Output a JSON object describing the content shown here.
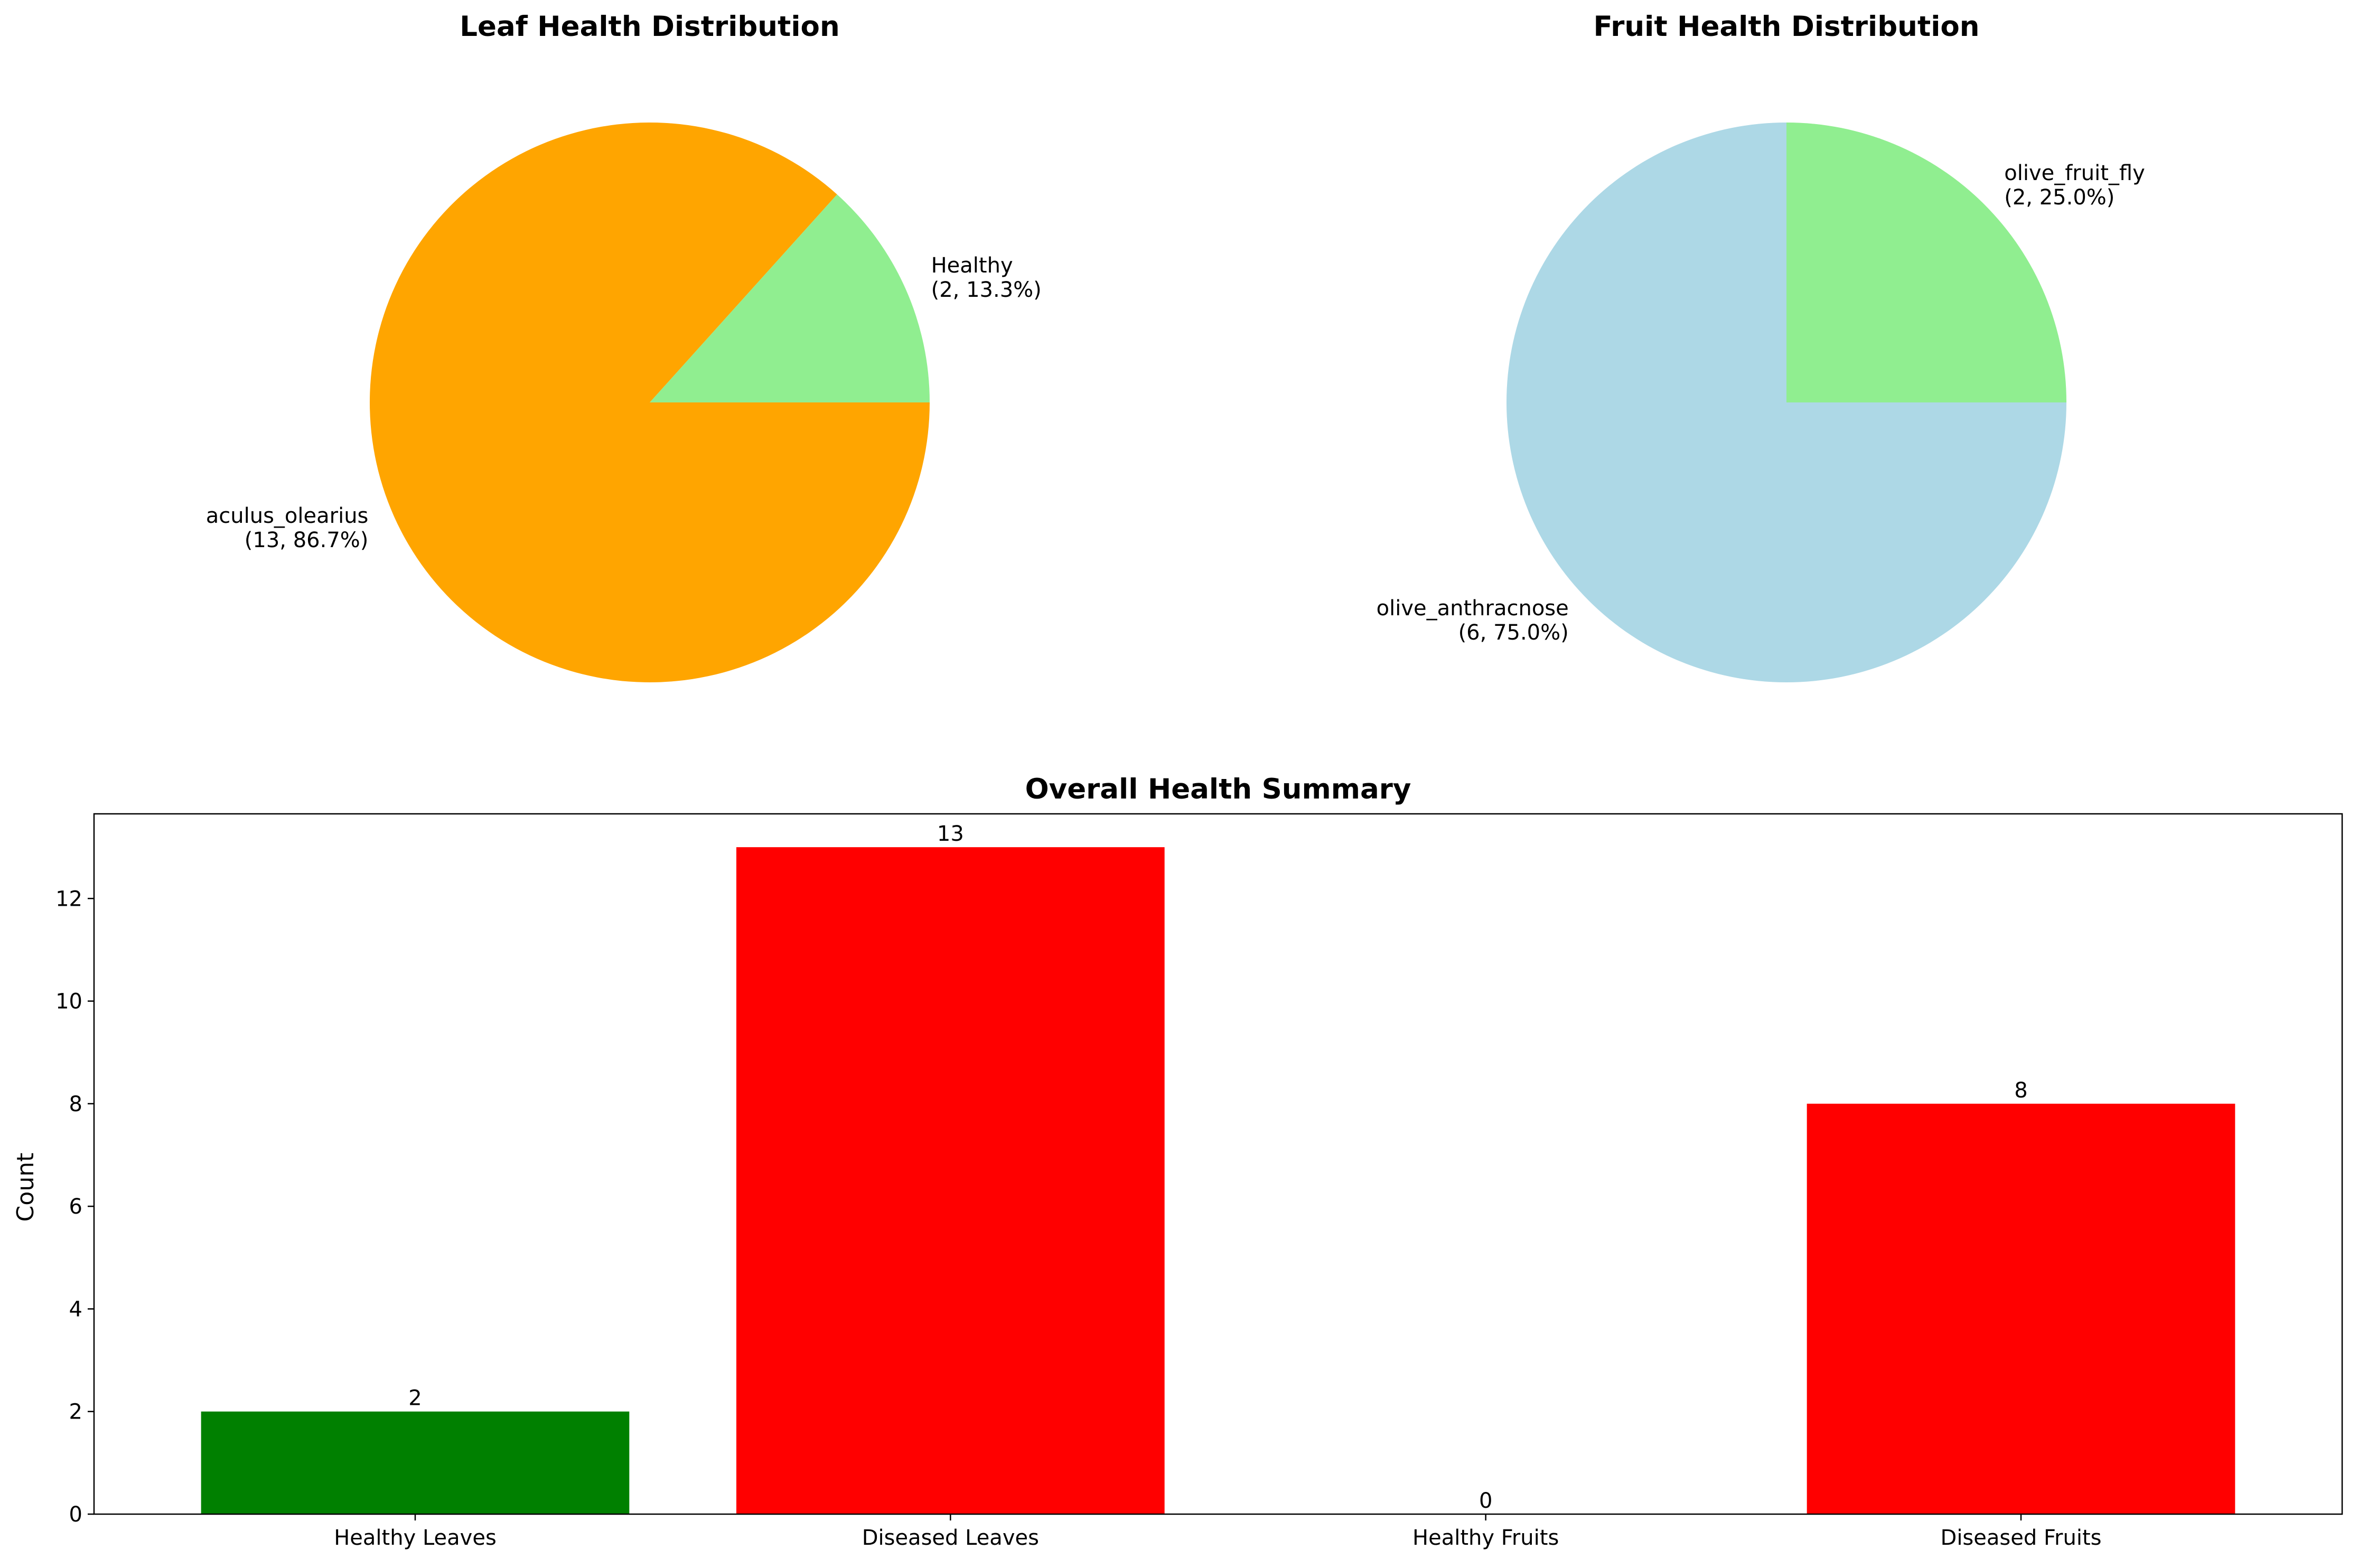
{
  "chart_data": [
    {
      "type": "pie",
      "title": "Leaf Health Distribution",
      "slices": [
        {
          "label": "Healthy",
          "value": 2,
          "percent": 13.3,
          "color": "#90ee90",
          "text": "Healthy\n(2, 13.3%)"
        },
        {
          "label": "aculus_olearius",
          "value": 13,
          "percent": 86.7,
          "color": "#ffa500",
          "text": "aculus_olearius\n(13, 86.7%)"
        }
      ],
      "start_angle": 0
    },
    {
      "type": "pie",
      "title": "Fruit Health Distribution",
      "slices": [
        {
          "label": "olive_fruit_fly",
          "value": 2,
          "percent": 25.0,
          "color": "#90ee90",
          "text": "olive_fruit_fly\n(2, 25.0%)"
        },
        {
          "label": "olive_anthracnose",
          "value": 6,
          "percent": 75.0,
          "color": "#add8e6",
          "text": "olive_anthracnose\n(6, 75.0%)"
        }
      ],
      "start_angle": 0
    },
    {
      "type": "bar",
      "title": "Overall Health Summary",
      "categories": [
        "Healthy Leaves",
        "Diseased Leaves",
        "Healthy Fruits",
        "Diseased Fruits"
      ],
      "values": [
        2,
        13,
        0,
        8
      ],
      "bar_labels": [
        "2",
        "13",
        "0",
        "8"
      ],
      "colors": [
        "#008000",
        "#ff0000",
        "#90ee90",
        "#ff0000"
      ],
      "xlabel": "",
      "ylabel": "Count",
      "ylim": [
        0,
        13.65
      ],
      "yticks": [
        0,
        2,
        4,
        6,
        8,
        10,
        12
      ],
      "grid": false
    }
  ]
}
